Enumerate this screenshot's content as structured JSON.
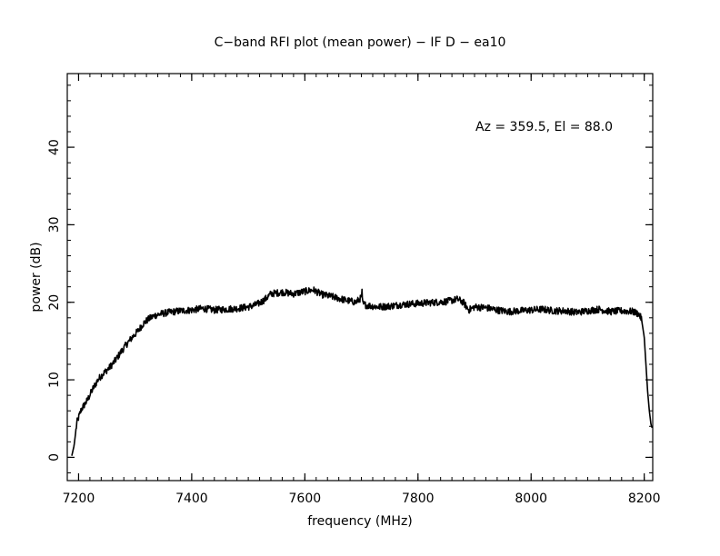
{
  "chart_data": {
    "type": "line",
    "title": "C−band RFI plot (mean power) − IF D − ea10",
    "xlabel": "frequency (MHz)",
    "ylabel": "power (dB)",
    "xlim": [
      7180,
      8215
    ],
    "ylim": [
      -3,
      49.5
    ],
    "x_ticks": [
      7200,
      7400,
      7600,
      7800,
      8000,
      8200
    ],
    "x_tick_labels": [
      "7200",
      "7400",
      "7600",
      "7800",
      "8000",
      "8200"
    ],
    "y_ticks": [
      0,
      10,
      20,
      30,
      40
    ],
    "y_tick_labels": [
      "0",
      "10",
      "20",
      "30",
      "40"
    ],
    "x_minor_step": 20,
    "y_minor_step": 2,
    "grid": false,
    "annotations": [
      {
        "text": "Az = 359.5, El = 88.0"
      }
    ],
    "series": [
      {
        "x": [
          7188,
          7192,
          7197,
          7205,
          7215,
          7225,
          7235,
          7245,
          7255,
          7265,
          7275,
          7285,
          7295,
          7305,
          7315,
          7325,
          7335,
          7345,
          7360,
          7380,
          7400,
          7420,
          7440,
          7460,
          7480,
          7500,
          7510,
          7520,
          7530,
          7540,
          7560,
          7580,
          7600,
          7615,
          7630,
          7650,
          7670,
          7690,
          7700,
          7701,
          7702,
          7710,
          7730,
          7750,
          7770,
          7790,
          7810,
          7830,
          7850,
          7870,
          7880,
          7890,
          7900,
          7920,
          7940,
          7960,
          7980,
          8000,
          8020,
          8040,
          8060,
          8080,
          8100,
          8120,
          8140,
          8160,
          8180,
          8190,
          8195,
          8200,
          8203,
          8206,
          8209,
          8212,
          8214
        ],
        "y": [
          0.2,
          1.5,
          4.5,
          6.2,
          7.3,
          8.8,
          10.1,
          10.9,
          11.6,
          12.5,
          13.6,
          14.6,
          15.5,
          16.3,
          17.3,
          17.9,
          18.3,
          18.5,
          18.7,
          18.9,
          19.0,
          19.2,
          19.0,
          19.1,
          19.2,
          19.4,
          19.6,
          19.9,
          20.4,
          21.1,
          21.3,
          21.1,
          21.4,
          21.6,
          21.0,
          20.7,
          20.3,
          20.0,
          20.6,
          21.3,
          19.8,
          19.6,
          19.4,
          19.5,
          19.7,
          19.8,
          19.9,
          20.0,
          20.1,
          20.4,
          20.0,
          19.0,
          19.4,
          19.3,
          19.0,
          18.8,
          18.9,
          19.0,
          19.1,
          18.9,
          18.9,
          18.7,
          18.9,
          19.1,
          18.8,
          18.9,
          18.8,
          18.5,
          17.9,
          15.5,
          12.0,
          8.5,
          6.0,
          4.2,
          3.8
        ]
      }
    ]
  }
}
